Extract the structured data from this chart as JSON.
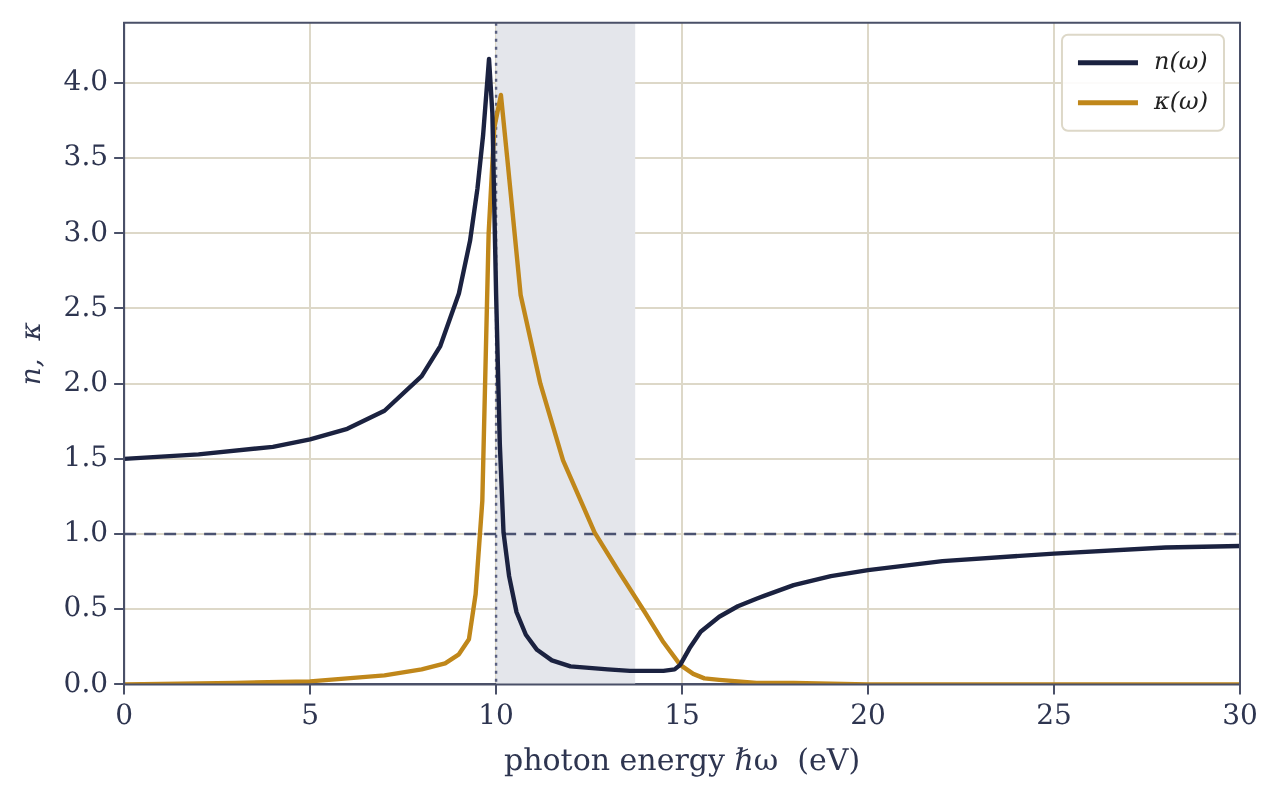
{
  "chart_data": {
    "type": "line",
    "xlabel": "photon energy ℏω  (eV)",
    "ylabel": "n,  κ",
    "xlim": [
      0,
      30
    ],
    "xticks": [
      0,
      5,
      10,
      15,
      20,
      25,
      30
    ],
    "ylim": [
      0,
      4.4
    ],
    "yticks": [
      {
        "value": 0,
        "label": "0.0"
      },
      {
        "value": 0.5,
        "label": "0.5"
      },
      {
        "value": 1,
        "label": "1.0"
      },
      {
        "value": 1.5,
        "label": "1.5"
      },
      {
        "value": 2,
        "label": "2.0"
      },
      {
        "value": 2.5,
        "label": "2.5"
      },
      {
        "value": 3,
        "label": "3.0"
      },
      {
        "value": 3.5,
        "label": "3.5"
      },
      {
        "value": 4,
        "label": "4.0"
      }
    ],
    "grid": true,
    "legend": "top right",
    "marker": "none",
    "line_style": "solid",
    "series": [
      {
        "name": "n(ω)",
        "color": "#1b2240",
        "x": [
          0,
          2,
          4,
          5,
          6,
          7,
          8,
          8.5,
          9,
          9.3,
          9.5,
          9.65,
          9.81,
          9.9,
          10.0,
          10.1,
          10.2,
          10.35,
          10.55,
          10.8,
          11.1,
          11.5,
          12,
          12.5,
          13,
          13.6,
          14,
          14.5,
          14.8,
          14.95,
          15.2,
          15.5,
          16,
          16.5,
          17,
          18,
          19,
          20,
          22,
          25,
          28,
          30
        ],
        "values": [
          1.5,
          1.53,
          1.58,
          1.63,
          1.7,
          1.82,
          2.05,
          2.25,
          2.6,
          2.95,
          3.3,
          3.65,
          4.16,
          3.8,
          2.6,
          1.6,
          1.01,
          0.72,
          0.48,
          0.33,
          0.23,
          0.16,
          0.12,
          0.11,
          0.1,
          0.09,
          0.09,
          0.09,
          0.1,
          0.13,
          0.24,
          0.35,
          0.45,
          0.52,
          0.57,
          0.66,
          0.72,
          0.76,
          0.82,
          0.87,
          0.91,
          0.92
        ]
      },
      {
        "name": "κ(ω)",
        "color": "#c0871a",
        "x": [
          0,
          3,
          5,
          7,
          8,
          8.63,
          9,
          9.27,
          9.45,
          9.63,
          9.8,
          9.95,
          10.13,
          10.3,
          10.66,
          11.19,
          11.8,
          12.65,
          13.3,
          14.0,
          14.5,
          14.95,
          15.3,
          15.6,
          16,
          17,
          18,
          20,
          25,
          30
        ],
        "values": [
          0,
          0.01,
          0.02,
          0.06,
          0.1,
          0.14,
          0.2,
          0.3,
          0.6,
          1.22,
          3.0,
          3.7,
          3.92,
          3.5,
          2.59,
          2.0,
          1.49,
          1.01,
          0.75,
          0.48,
          0.28,
          0.13,
          0.07,
          0.04,
          0.03,
          0.01,
          0.01,
          0,
          0,
          0
        ]
      }
    ],
    "ref_lines": [
      {
        "axis": "x",
        "value": 10,
        "color": "#5a6080",
        "line_style": "dotted"
      },
      {
        "axis": "y",
        "value": 1,
        "color": "#4a5270",
        "line_style": "dashed"
      }
    ],
    "bands": [
      {
        "axis": "x",
        "from": 10,
        "to": 13.74,
        "color": "#e4e6eb"
      }
    ]
  }
}
